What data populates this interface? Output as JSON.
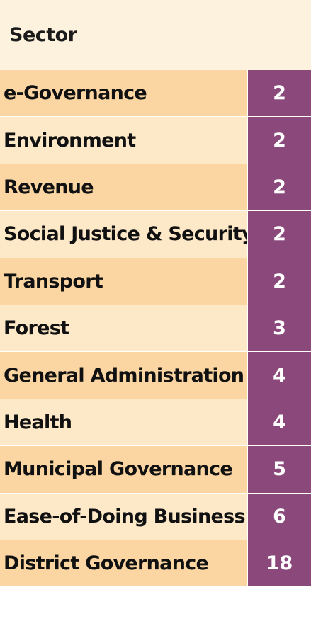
{
  "chart_data": {
    "type": "table",
    "header": "Sector",
    "rows": [
      {
        "sector": "e-Governance",
        "value": 2
      },
      {
        "sector": "Environment",
        "value": 2
      },
      {
        "sector": "Revenue",
        "value": 2
      },
      {
        "sector": "Social Justice & Security",
        "value": 2
      },
      {
        "sector": "Transport",
        "value": 2
      },
      {
        "sector": "Forest",
        "value": 3
      },
      {
        "sector": "General Administration",
        "value": 4
      },
      {
        "sector": "Health",
        "value": 4
      },
      {
        "sector": "Municipal Governance",
        "value": 5
      },
      {
        "sector": "Ease-of-Doing Business",
        "value": 6
      },
      {
        "sector": "District Governance",
        "value": 18
      }
    ]
  },
  "colors": {
    "header_bg": "#fdf2dd",
    "row_odd_bg": "#fbd6a2",
    "row_even_bg": "#fde8c8",
    "value_bg": "#8b497b",
    "value_text": "#ffffff"
  }
}
